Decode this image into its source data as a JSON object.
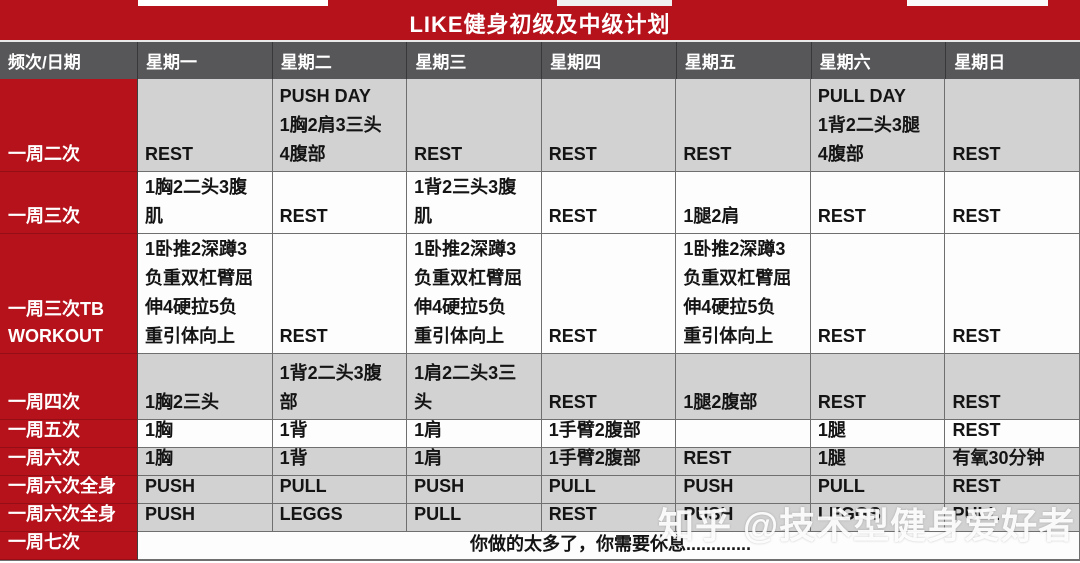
{
  "title": "LIKE健身初级及中级计划",
  "watermark": "知乎 @技术型健身爱好者",
  "colors": {
    "brand_red": "#b5121c",
    "header_gray": "#57575a",
    "band_gray": "#d2d2d2",
    "band_white": "#fdfdfd",
    "text_black": "#141414",
    "text_white": "#ffffff"
  },
  "table": {
    "corner_header": "频次/日期",
    "day_headers": [
      "星期一",
      "星期二",
      "星期三",
      "星期四",
      "星期五",
      "星期六",
      "星期日"
    ],
    "rows": [
      {
        "label": "一周二次",
        "bg": "gray",
        "cells": [
          "REST",
          "PUSH DAY\n1胸2肩3三头\n4腹部",
          "REST",
          "REST",
          "REST",
          "PULL DAY\n1背2二头3腿\n4腹部",
          "REST"
        ]
      },
      {
        "label": "一周三次",
        "bg": "white",
        "cells": [
          "1胸2二头3腹\n肌",
          "REST",
          "1背2三头3腹\n肌",
          "REST",
          "1腿2肩",
          "REST",
          "REST"
        ]
      },
      {
        "label": "一周三次TB\nWORKOUT",
        "bg": "white",
        "cells": [
          "1卧推2深蹲3\n负重双杠臂屈\n伸4硬拉5负\n重引体向上",
          "REST",
          "1卧推2深蹲3\n负重双杠臂屈\n伸4硬拉5负\n重引体向上",
          "REST",
          "1卧推2深蹲3\n负重双杠臂屈\n伸4硬拉5负\n重引体向上",
          "REST",
          "REST"
        ]
      },
      {
        "label": "一周四次",
        "bg": "gray",
        "cells": [
          "1胸2三头",
          "1背2二头3腹\n部",
          "1肩2二头3三\n头",
          "REST",
          "1腿2腹部",
          "REST",
          "REST"
        ]
      },
      {
        "label": "一周五次",
        "bg": "white",
        "cells": [
          "1胸",
          "1背",
          "1肩",
          "1手臂2腹部",
          "",
          "1腿",
          "REST"
        ]
      },
      {
        "label": "一周六次",
        "bg": "gray",
        "cells": [
          "1胸",
          "1背",
          "1肩",
          "1手臂2腹部",
          "REST",
          "1腿",
          "有氧30分钟"
        ]
      },
      {
        "label": "一周六次全身",
        "bg": "gray",
        "cells": [
          "PUSH",
          "PULL",
          "PUSH",
          "PULL",
          "PUSH",
          "PULL",
          "REST"
        ]
      },
      {
        "label": "一周六次全身",
        "bg": "gray",
        "cells": [
          "PUSH",
          "LEGGS",
          "PULL",
          "REST",
          "PUSH",
          "LEGGS",
          "PULL"
        ]
      },
      {
        "label": "一周七次",
        "bg": "white",
        "merged": "你做的太多了，你需要休息............."
      }
    ]
  }
}
